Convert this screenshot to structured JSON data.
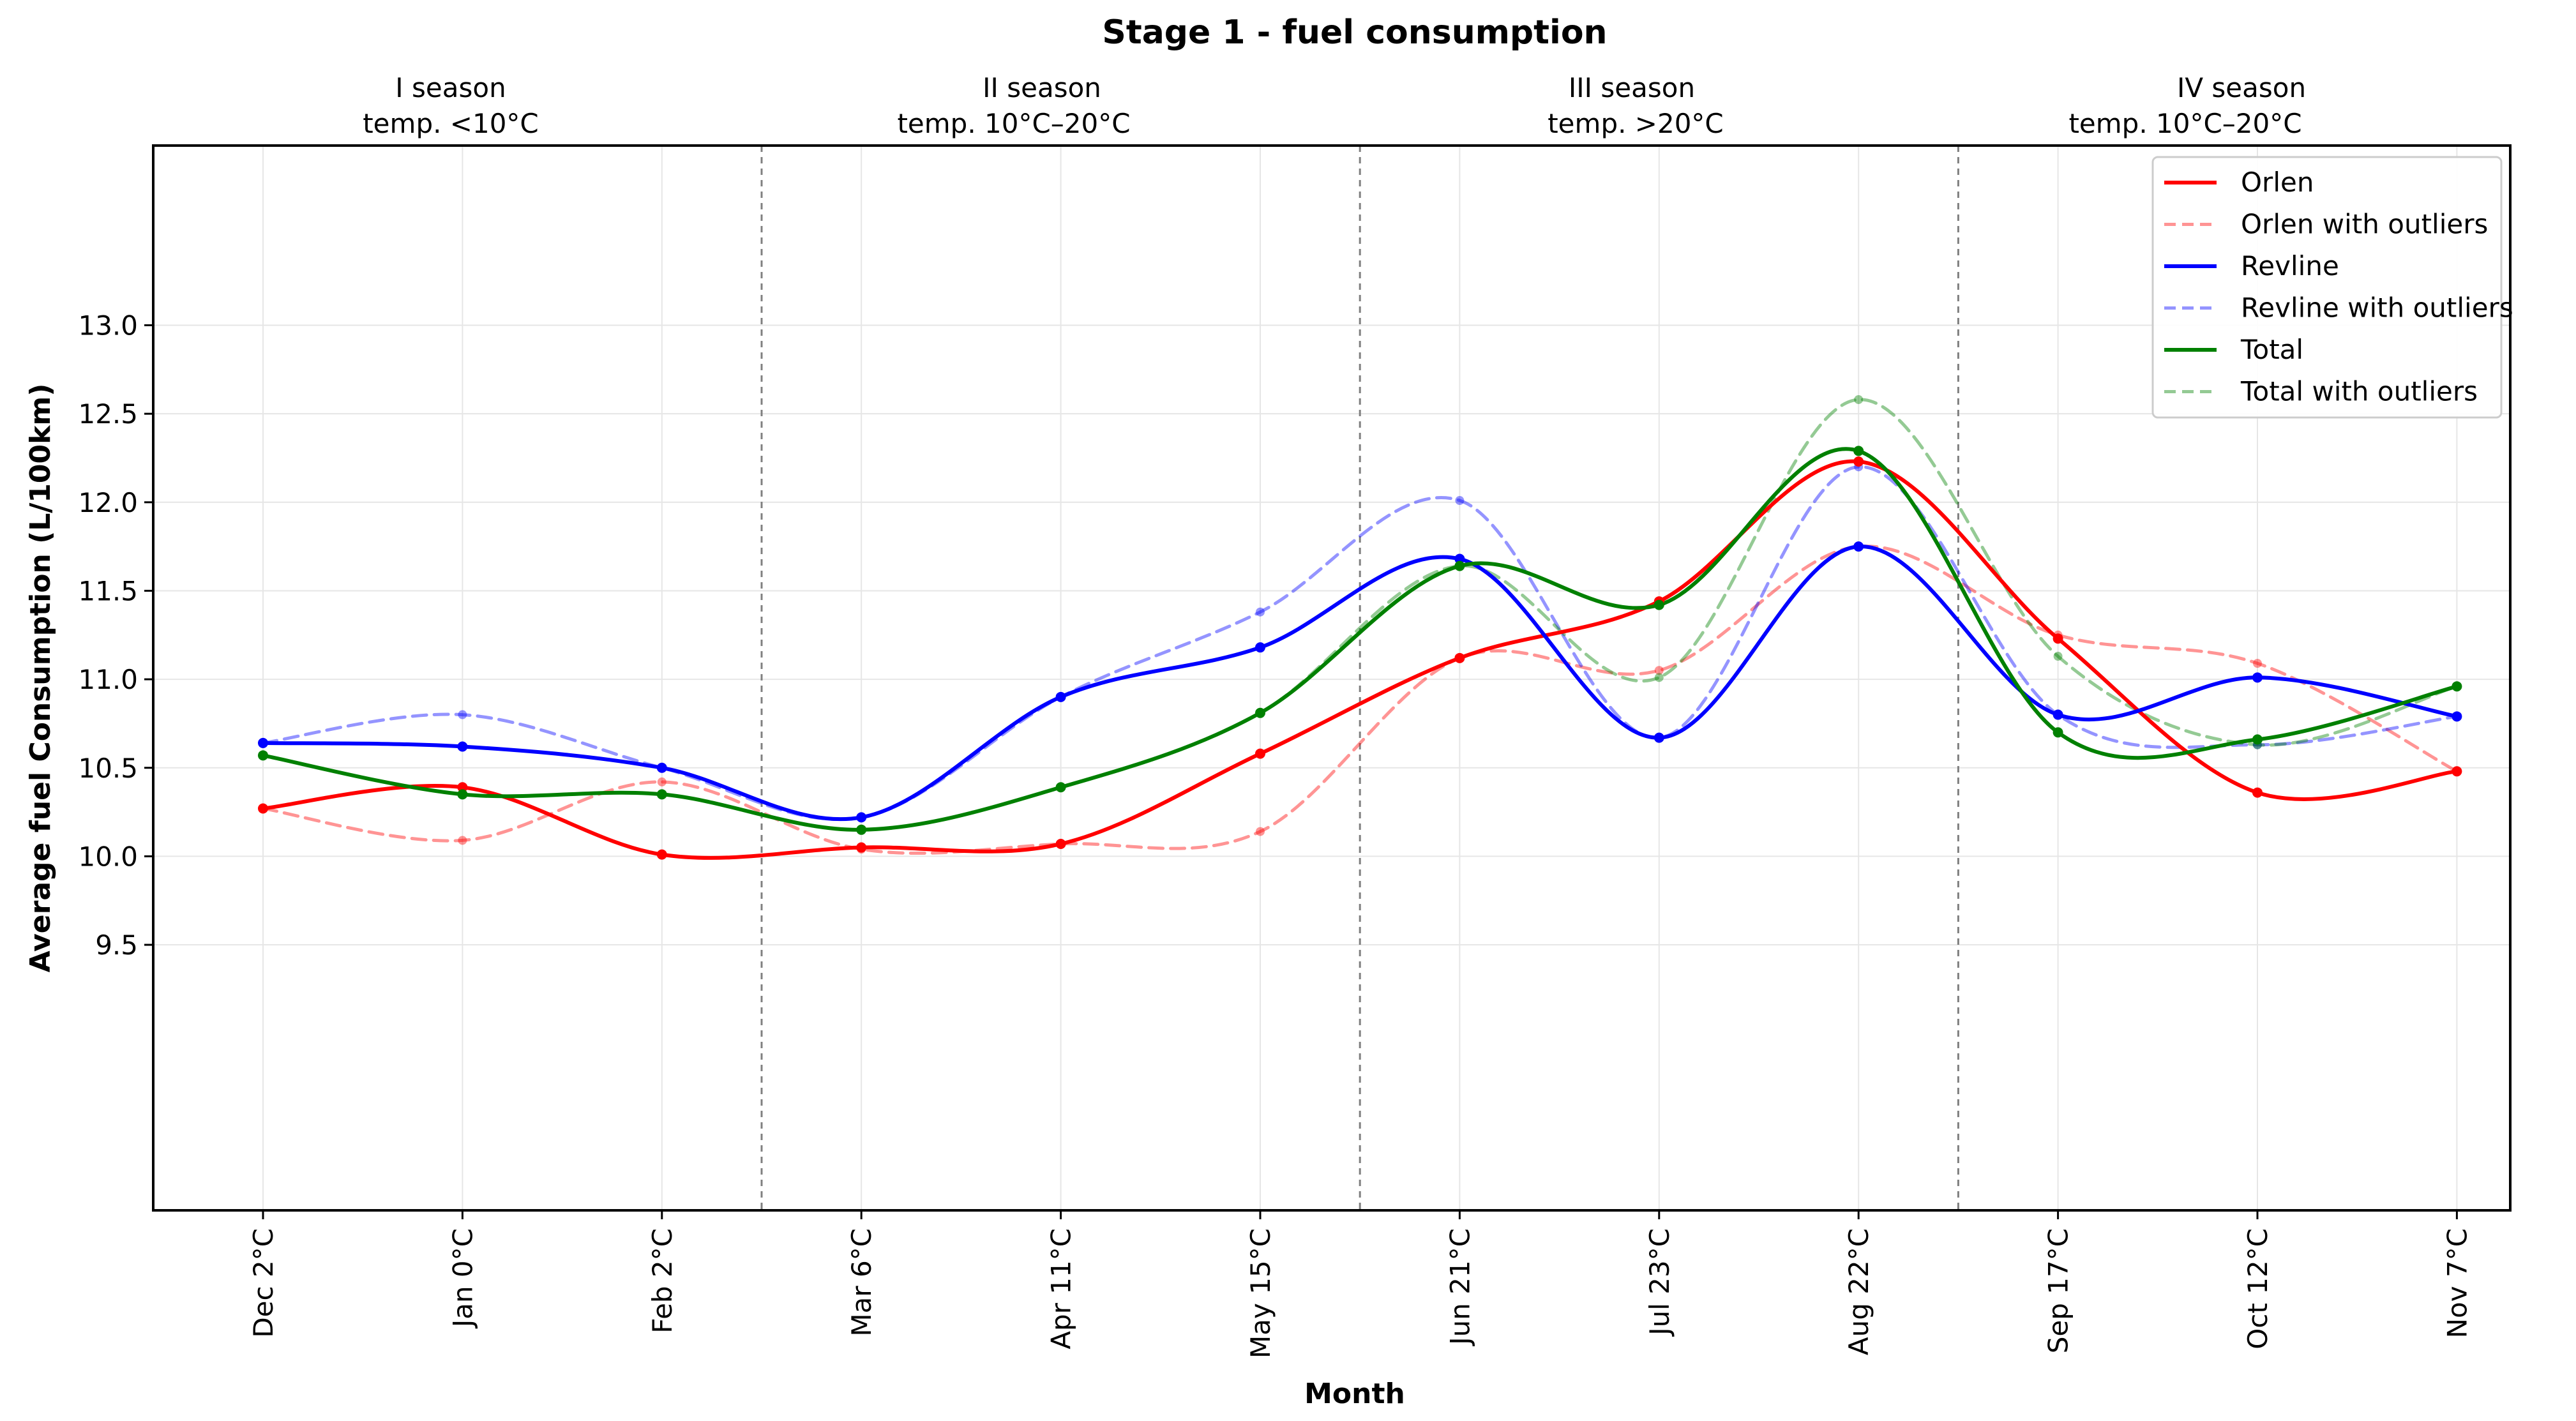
{
  "chart_data": {
    "type": "line",
    "title": "Stage 1 - fuel consumption",
    "xlabel": "Month",
    "ylabel": "Average fuel Consumption (L/100km)",
    "categories": [
      "Dec 2°C",
      "Jan 0°C",
      "Feb 2°C",
      "Mar 6°C",
      "Apr 11°C",
      "May 15°C",
      "Jun 21°C",
      "Jul 23°C",
      "Aug 22°C",
      "Sep 17°C",
      "Oct 12°C",
      "Nov 7°C"
    ],
    "yticks": [
      "9.5",
      "10.0",
      "10.5",
      "11.0",
      "11.5",
      "12.0",
      "12.5",
      "13.0"
    ],
    "ylim": [
      8.0,
      14.0
    ],
    "grid": true,
    "legend_position": "top-right",
    "seasons": [
      {
        "name": "I season",
        "temp": "temp. <10°C"
      },
      {
        "name": "II season",
        "temp": "temp. 10°C–20°C"
      },
      {
        "name": "III season",
        "temp": "temp. >20°C"
      },
      {
        "name": "IV season",
        "temp": "temp. 10°C–20°C"
      }
    ],
    "series": [
      {
        "name": "Orlen",
        "color": "#ff0000",
        "style": "solid",
        "values": [
          10.27,
          10.39,
          10.01,
          10.05,
          10.07,
          10.58,
          11.12,
          11.44,
          12.23,
          11.23,
          10.36,
          10.48
        ]
      },
      {
        "name": "Orlen with outliers",
        "color": "#ff0000",
        "style": "dashed",
        "values": [
          10.27,
          10.09,
          10.42,
          10.04,
          10.07,
          10.14,
          11.12,
          11.05,
          11.75,
          11.25,
          11.09,
          10.48
        ]
      },
      {
        "name": "Revline",
        "color": "#0000ff",
        "style": "solid",
        "values": [
          10.64,
          10.62,
          10.5,
          10.22,
          10.9,
          11.18,
          11.68,
          10.67,
          11.75,
          10.8,
          11.01,
          10.79
        ]
      },
      {
        "name": "Revline with outliers",
        "color": "#0000ff",
        "style": "dashed",
        "values": [
          10.64,
          10.8,
          10.5,
          10.22,
          10.9,
          11.38,
          12.01,
          10.67,
          12.2,
          10.8,
          10.63,
          10.79
        ]
      },
      {
        "name": "Total",
        "color": "#008000",
        "style": "solid",
        "values": [
          10.57,
          10.35,
          10.35,
          10.15,
          10.39,
          10.81,
          11.64,
          11.42,
          12.29,
          10.7,
          10.66,
          10.96
        ]
      },
      {
        "name": "Total with outliers",
        "color": "#008000",
        "style": "dashed",
        "values": [
          10.57,
          10.35,
          10.35,
          10.15,
          10.39,
          10.81,
          11.64,
          11.01,
          12.58,
          11.13,
          10.63,
          10.96
        ]
      }
    ]
  }
}
